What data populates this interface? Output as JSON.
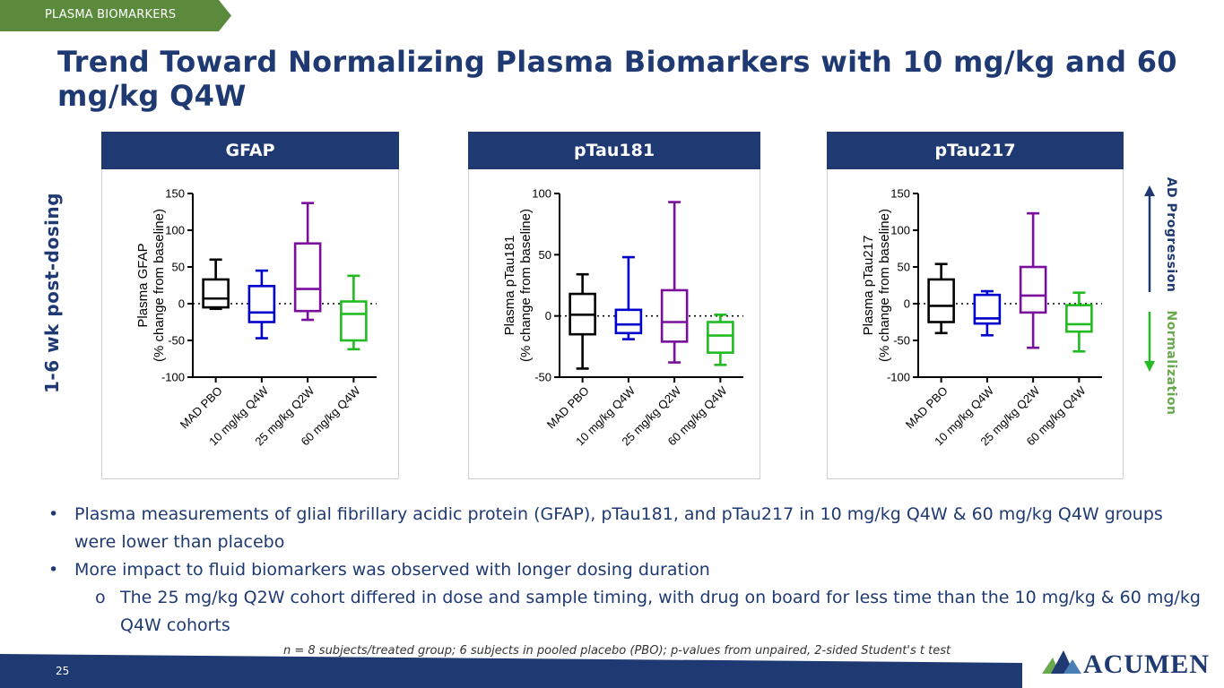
{
  "section_tag": "PLASMA BIOMARKERS",
  "title": "Trend Toward Normalizing Plasma Biomarkers with 10 mg/kg and 60 mg/kg Q4W",
  "side_label": "1-6 wk post-dosing",
  "legend": {
    "up_label": "AD Progression",
    "down_label": "Normalization"
  },
  "colors": {
    "navy": "#1f3a73",
    "green_tag": "#5b8a3c",
    "normalization_green": "#6aa84f",
    "pbo": "#000000",
    "q4w_10": "#0000cc",
    "q2w_25": "#7a0f9e",
    "q4w_60": "#22bb22"
  },
  "chart_data": [
    {
      "type": "box",
      "panel_title": "GFAP",
      "ylabel": [
        "Plasma GFAP",
        "(% change from baseline)"
      ],
      "ylim": [
        -100,
        150
      ],
      "yticks": [
        150,
        100,
        50,
        0,
        -50,
        -100
      ],
      "reference_line": 0,
      "categories": [
        "MAD PBO",
        "10 mg/kg Q4W",
        "25 mg/kg Q2W",
        "60 mg/kg Q4W"
      ],
      "series": [
        {
          "name": "MAD PBO",
          "color": "#000000",
          "min": -7,
          "q1": -5,
          "median": 7,
          "q3": 33,
          "max": 60
        },
        {
          "name": "10 mg/kg Q4W",
          "color": "#0000cc",
          "min": -47,
          "q1": -25,
          "median": -12,
          "q3": 24,
          "max": 45
        },
        {
          "name": "25 mg/kg Q2W",
          "color": "#7a0f9e",
          "min": -22,
          "q1": -10,
          "median": 20,
          "q3": 82,
          "max": 137
        },
        {
          "name": "60 mg/kg Q4W",
          "color": "#22bb22",
          "min": -62,
          "q1": -50,
          "median": -14,
          "q3": 3,
          "max": 38
        }
      ]
    },
    {
      "type": "box",
      "panel_title": "pTau181",
      "ylabel": [
        "Plasma pTau181",
        "(% change from baseline)"
      ],
      "ylim": [
        -50,
        100
      ],
      "yticks": [
        100,
        50,
        0,
        -50
      ],
      "reference_line": 0,
      "categories": [
        "MAD PBO",
        "10 mg/kg Q4W",
        "25 mg/kg Q2W",
        "60 mg/kg Q4W"
      ],
      "series": [
        {
          "name": "MAD PBO",
          "color": "#000000",
          "min": -43,
          "q1": -15,
          "median": 1,
          "q3": 18,
          "max": 34
        },
        {
          "name": "10 mg/kg Q4W",
          "color": "#0000cc",
          "min": -19,
          "q1": -14,
          "median": -7,
          "q3": 5,
          "max": 48
        },
        {
          "name": "25 mg/kg Q2W",
          "color": "#7a0f9e",
          "min": -38,
          "q1": -21,
          "median": -5,
          "q3": 21,
          "max": 93
        },
        {
          "name": "60 mg/kg Q4W",
          "color": "#22bb22",
          "min": -40,
          "q1": -30,
          "median": -16,
          "q3": -5,
          "max": 1
        }
      ]
    },
    {
      "type": "box",
      "panel_title": "pTau217",
      "ylabel": [
        "Plasma pTau217",
        "(% change from baseline)"
      ],
      "ylim": [
        -100,
        150
      ],
      "yticks": [
        150,
        100,
        50,
        0,
        -50,
        -100
      ],
      "reference_line": 0,
      "categories": [
        "MAD PBO",
        "10 mg/kg Q4W",
        "25 mg/kg Q2W",
        "60 mg/kg Q4W"
      ],
      "series": [
        {
          "name": "MAD PBO",
          "color": "#000000",
          "min": -40,
          "q1": -25,
          "median": -3,
          "q3": 33,
          "max": 54
        },
        {
          "name": "10 mg/kg Q4W",
          "color": "#0000cc",
          "min": -43,
          "q1": -27,
          "median": -20,
          "q3": 12,
          "max": 17
        },
        {
          "name": "25 mg/kg Q2W",
          "color": "#7a0f9e",
          "min": -60,
          "q1": -12,
          "median": 11,
          "q3": 50,
          "max": 123
        },
        {
          "name": "60 mg/kg Q4W",
          "color": "#22bb22",
          "min": -65,
          "q1": -38,
          "median": -28,
          "q3": -2,
          "max": 15
        }
      ]
    }
  ],
  "bullets": [
    {
      "level": 1,
      "marker": "•",
      "text": "Plasma measurements of glial fibrillary acidic protein (GFAP), pTau181, and pTau217 in 10 mg/kg Q4W & 60 mg/kg Q4W groups were lower than placebo"
    },
    {
      "level": 1,
      "marker": "•",
      "text": "More impact to fluid biomarkers was observed with longer dosing duration"
    },
    {
      "level": 2,
      "marker": "o",
      "text": "The 25 mg/kg Q2W cohort differed in dose and sample timing, with drug on board for less time than the 10 mg/kg & 60 mg/kg Q4W cohorts"
    }
  ],
  "footnote": "n = 8 subjects/treated group; 6 subjects in pooled placebo (PBO); p-values from unpaired, 2-sided Student's t test",
  "page_number": "25",
  "logo_text": "ACUMEN"
}
